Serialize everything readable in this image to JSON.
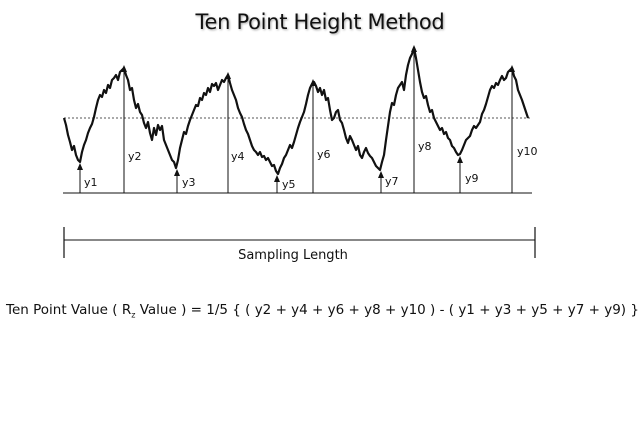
{
  "title": "Ten Point Height Method",
  "labels": [
    "y1",
    "y2",
    "y3",
    "y4",
    "y5",
    "y6",
    "y7",
    "y8",
    "y9",
    "y10"
  ],
  "sampling_length": "Sampling Length",
  "formula": {
    "lead": "Ten Point Value ( R",
    "sub": "z",
    "trail": " Value ) = 1/5 {  ( y2 + y4 + y6 + y8 + y10 )  -  ( y1 + y3 + y5 + y7 + y9) }"
  }
}
